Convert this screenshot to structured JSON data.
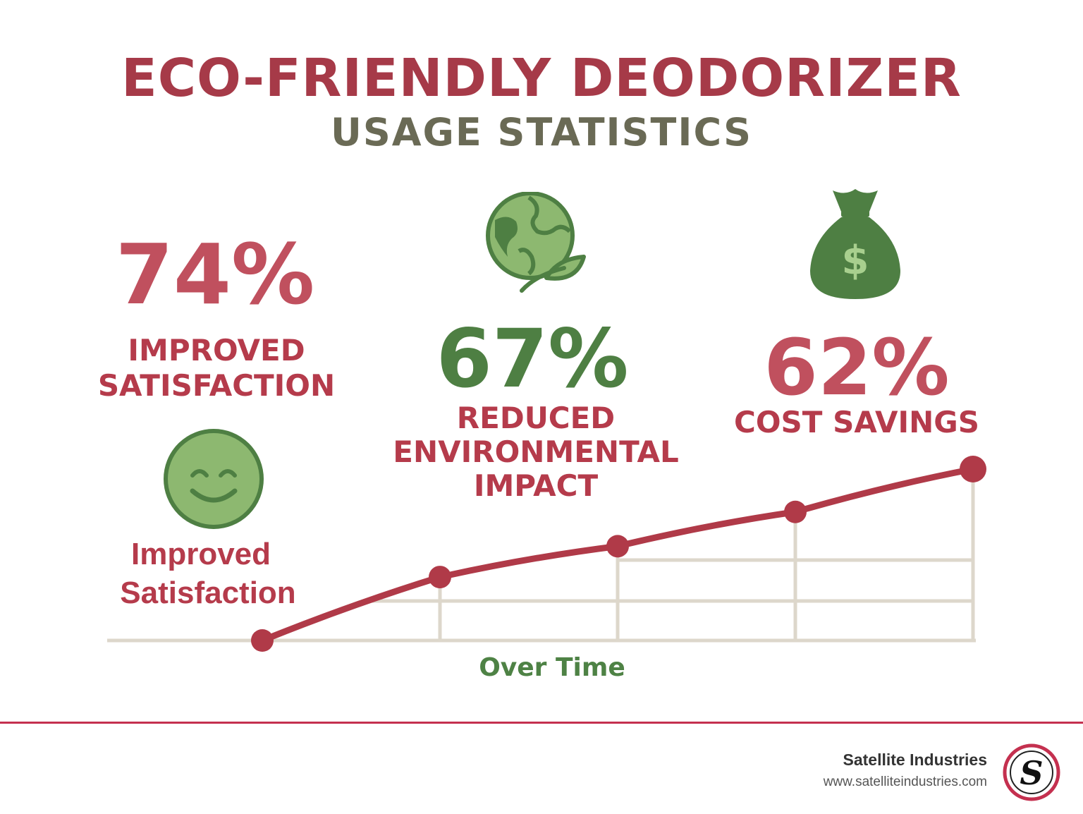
{
  "header": {
    "title": "ECO-FRIENDLY DEODORIZER",
    "subtitle": "USAGE STATISTICS"
  },
  "stats": [
    {
      "value": "74%",
      "label_line1": "IMPROVED",
      "label_line2": "SATISFACTION",
      "color": "#c0505e",
      "icon": "smiley-face-icon"
    },
    {
      "value": "67%",
      "label_line1": "REDUCED",
      "label_line2": "ENVIRONMENTAL",
      "label_line3": "IMPACT",
      "color": "#4e7f43",
      "icon": "globe-leaf-icon"
    },
    {
      "value": "62%",
      "label_line1": "COST SAVINGS",
      "color": "#c0505e",
      "icon": "money-bag-icon"
    }
  ],
  "satisfaction_caption": {
    "line1": "Improved",
    "line2": "Satisfaction"
  },
  "chart_data": {
    "type": "line",
    "title": "",
    "xlabel": "Over Time",
    "ylabel": "",
    "x": [
      1,
      2,
      3,
      4,
      5
    ],
    "series": [
      {
        "values": [
          0,
          0.37,
          0.55,
          0.75,
          1.0
        ],
        "color": "#b03a48"
      }
    ],
    "ylim": [
      0,
      1.0
    ],
    "grid": true
  },
  "footer": {
    "brand": "Satellite Industries",
    "url": "www.satelliteindustries.com",
    "logo_letter": "S"
  },
  "colors": {
    "red": "#a63a48",
    "green": "#4e7f43",
    "light_green": "#8db870",
    "grid": "#ddd7cb",
    "rule": "#c4304f"
  }
}
